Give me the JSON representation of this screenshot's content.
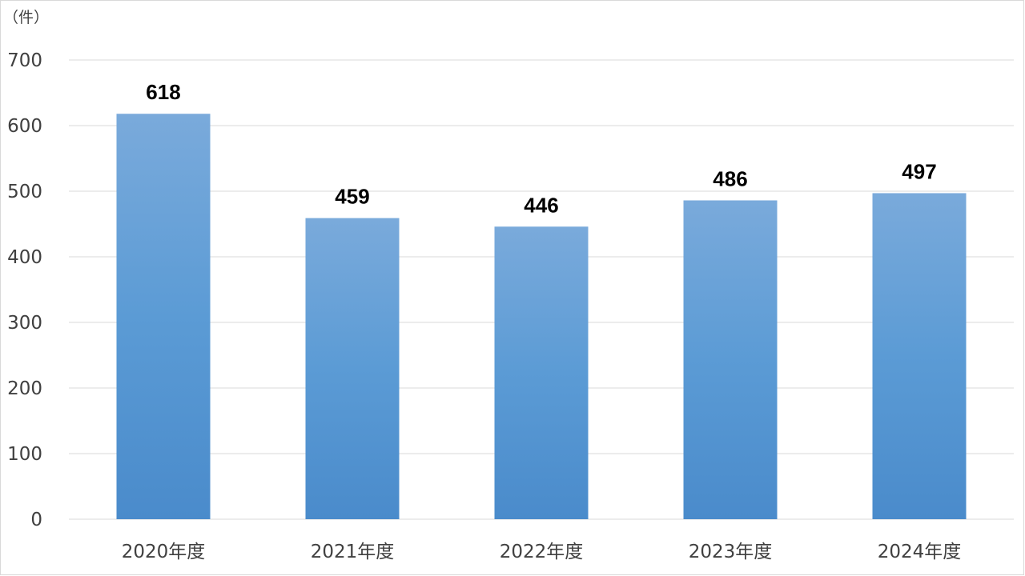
{
  "chart_data": {
    "type": "bar",
    "unit_label": "（件）",
    "categories": [
      "2020年度",
      "2021年度",
      "2022年度",
      "2023年度",
      "2024年度"
    ],
    "values": [
      618,
      459,
      446,
      486,
      497
    ],
    "data_labels": [
      "618",
      "459",
      "446",
      "486",
      "497"
    ],
    "y_ticks": [
      "0",
      "100",
      "200",
      "300",
      "400",
      "500",
      "600",
      "700"
    ],
    "ylim": [
      0,
      700
    ],
    "grid": true,
    "colors": {
      "bar_top": "#7aaadb",
      "bar_mid": "#5b9bd5",
      "bar_bottom": "#4a8bcb",
      "grid": "#d9d9d9",
      "axis_text": "#404040",
      "data_label": "#000000"
    }
  }
}
